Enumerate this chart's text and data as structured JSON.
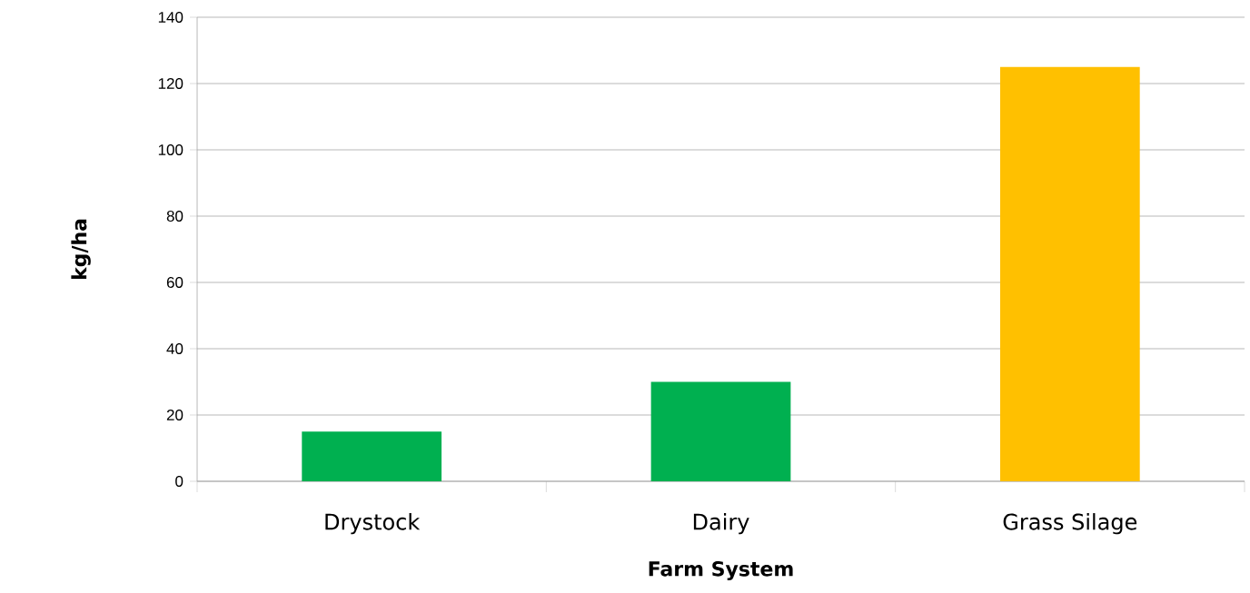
{
  "chart_data": {
    "type": "bar",
    "xlabel": "Farm System",
    "ylabel": "kg/ha",
    "categories": [
      "Drystock",
      "Dairy",
      "Grass Silage"
    ],
    "values": [
      15,
      30,
      125
    ],
    "colors": [
      "#00b050",
      "#00b050",
      "#ffc000"
    ],
    "ylim": [
      0,
      140
    ],
    "yticks": [
      0,
      20,
      40,
      60,
      80,
      100,
      120,
      140
    ],
    "grid": "y"
  }
}
